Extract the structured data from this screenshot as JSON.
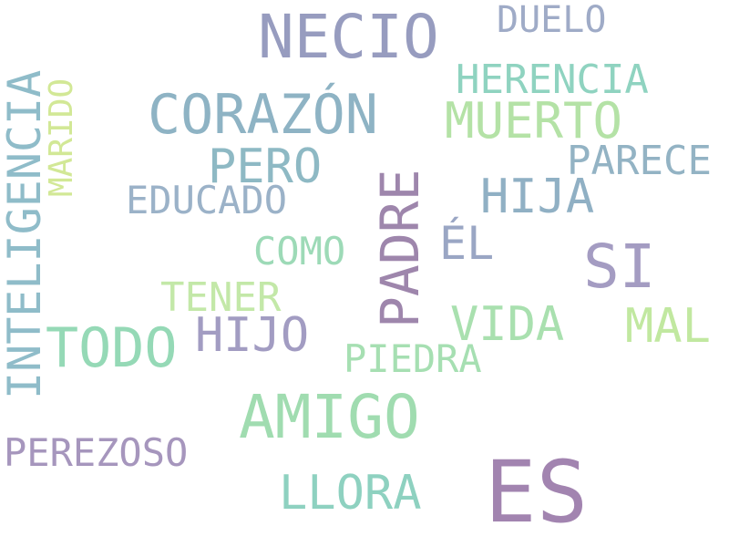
{
  "words": {
    "necio": {
      "text": "NECIO",
      "color": "#979cbf"
    },
    "duelo": {
      "text": "DUELO",
      "color": "#9fabc7"
    },
    "herencia": {
      "text": "HERENCIA",
      "color": "#8fd3c0"
    },
    "corazon": {
      "text": "CORAZÓN",
      "color": "#8eb3c4"
    },
    "muerto": {
      "text": "MUERTO",
      "color": "#b4e2a6"
    },
    "pero": {
      "text": "PERO",
      "color": "#8eb9c4"
    },
    "parece": {
      "text": "PARECE",
      "color": "#93b3c4"
    },
    "educado": {
      "text": "EDUCADO",
      "color": "#9bb2c8"
    },
    "hija": {
      "text": "HIJA",
      "color": "#90b0c4"
    },
    "el": {
      "text": "ÉL",
      "color": "#9aa6c4"
    },
    "si": {
      "text": "SI",
      "color": "#a49cc2"
    },
    "como": {
      "text": "COMO",
      "color": "#9ddab7"
    },
    "tener": {
      "text": "TENER",
      "color": "#c3e8a8"
    },
    "vida": {
      "text": "VIDA",
      "color": "#a9e0af"
    },
    "mal": {
      "text": "MAL",
      "color": "#c1e8a0"
    },
    "hijo": {
      "text": "HIJO",
      "color": "#a29cc2"
    },
    "todo": {
      "text": "TODO",
      "color": "#95d9b6"
    },
    "piedra": {
      "text": "PIEDRA",
      "color": "#a6dfb2"
    },
    "amigo": {
      "text": "AMIGO",
      "color": "#a0dcb0"
    },
    "perezoso": {
      "text": "PEREZOSO",
      "color": "#a696bd"
    },
    "llora": {
      "text": "LLORA",
      "color": "#8ed1c0"
    },
    "es": {
      "text": "ES",
      "color": "#a284b0"
    },
    "inteligencia": {
      "text": "INTELIGENCIA",
      "color": "#8fbcc9"
    },
    "marido": {
      "text": "MARIDO",
      "color": "#d2e896"
    },
    "padre": {
      "text": "PADRE",
      "color": "#9e86ac"
    }
  }
}
